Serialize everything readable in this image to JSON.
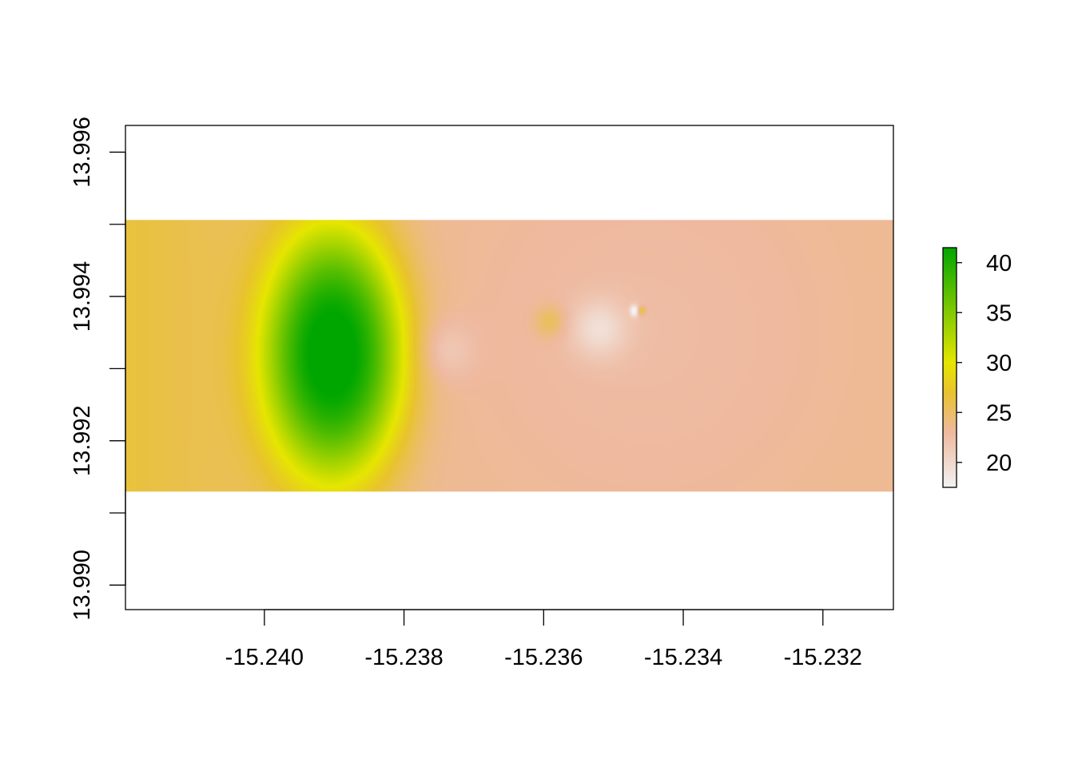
{
  "chart_data": {
    "type": "heatmap",
    "title": "",
    "xlabel": "",
    "ylabel": "",
    "xlim": [
      -15.24199,
      -15.23099
    ],
    "ylim": [
      13.98966,
      13.99637
    ],
    "x_ticks": [
      -15.24,
      -15.238,
      -15.236,
      -15.234,
      -15.232
    ],
    "x_tick_labels": [
      "-15.240",
      "-15.238",
      "-15.236",
      "-15.234",
      "-15.232"
    ],
    "y_ticks": [
      13.99,
      13.991,
      13.992,
      13.993,
      13.994,
      13.995,
      13.996
    ],
    "y_tick_labels": [
      "13.990",
      "",
      "13.992",
      "",
      "13.994",
      "",
      "13.996"
    ],
    "raster_extent": {
      "x": [
        -15.24199,
        -15.23099
      ],
      "y": [
        13.99129,
        13.99506
      ]
    },
    "background_value": 23.5,
    "surface_features": [
      {
        "kind": "peak",
        "x": -15.239,
        "y": 13.9932,
        "value": 41.5
      },
      {
        "kind": "trough",
        "x": -15.2374,
        "y": 13.99325,
        "value": 21.5
      },
      {
        "kind": "bump",
        "x": -15.2359,
        "y": 13.99365,
        "value": 26.0
      },
      {
        "kind": "trough",
        "x": -15.2352,
        "y": 13.99355,
        "value": 20.0
      },
      {
        "kind": "trough",
        "x": -15.2347,
        "y": 13.9938,
        "value": 17.5
      },
      {
        "kind": "bump",
        "x": -15.2346,
        "y": 13.9938,
        "value": 27.5
      }
    ],
    "legend": {
      "placement": "right",
      "min": 17.5,
      "max": 41.5,
      "ticks": [
        20,
        25,
        30,
        35,
        40
      ],
      "tick_labels": [
        "20",
        "25",
        "30",
        "35",
        "40"
      ]
    },
    "colors": {
      "gradient": [
        "#F2F2F2",
        "#EEB99F",
        "#E8C32E",
        "#E6E600",
        "#00A600"
      ],
      "gradient_stops": [
        17.5,
        23.0,
        27.0,
        30.0,
        41.5
      ]
    }
  }
}
